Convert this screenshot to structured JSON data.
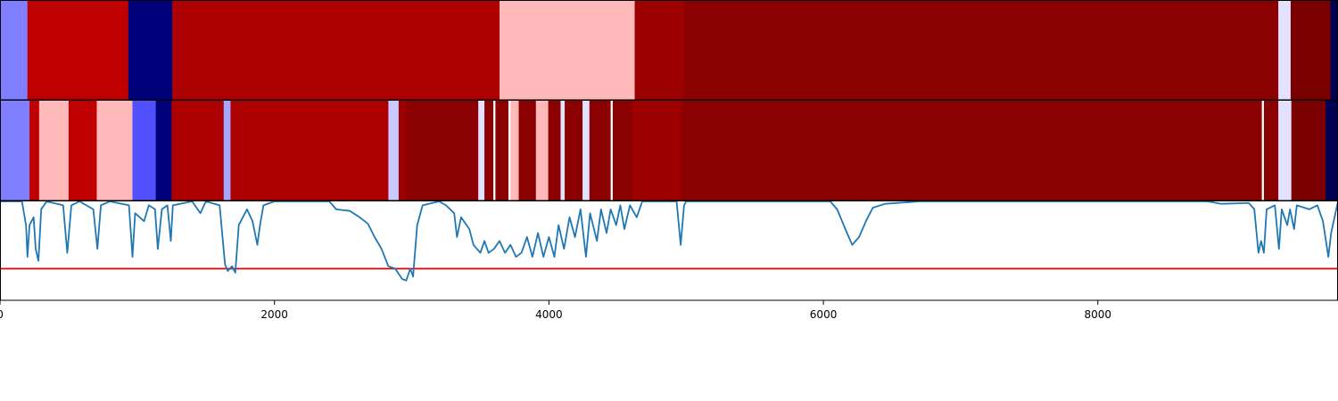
{
  "chart_data": {
    "type": "heatmap",
    "xlim": [
      0,
      9750
    ],
    "x_ticks": [
      "0",
      "2000",
      "4000",
      "6000",
      "8000"
    ],
    "x_tick_values": [
      0,
      2000,
      4000,
      6000,
      8000
    ],
    "colormap": "seismic",
    "rows": [
      {
        "name": "",
        "segments": [
          {
            "start": 0,
            "end": 200,
            "color": "#7f7fff"
          },
          {
            "start": 200,
            "end": 935,
            "color": "#c00000"
          },
          {
            "start": 935,
            "end": 1255,
            "color": "#00007a"
          },
          {
            "start": 1255,
            "end": 3640,
            "color": "#ad0000"
          },
          {
            "start": 3640,
            "end": 4625,
            "color": "#ffb9b9"
          },
          {
            "start": 4625,
            "end": 4985,
            "color": "#9c0000"
          },
          {
            "start": 4985,
            "end": 9315,
            "color": "#8b0000"
          },
          {
            "start": 9315,
            "end": 9405,
            "color": "#e2e2ff"
          },
          {
            "start": 9405,
            "end": 9695,
            "color": "#7a0000"
          },
          {
            "start": 9695,
            "end": 9750,
            "color": "#000055"
          }
        ]
      },
      {
        "name": "",
        "segments": [
          {
            "start": 0,
            "end": 215,
            "color": "#7f7fff"
          },
          {
            "start": 215,
            "end": 285,
            "color": "#c00000"
          },
          {
            "start": 285,
            "end": 500,
            "color": "#ffb9b9"
          },
          {
            "start": 500,
            "end": 705,
            "color": "#c00000"
          },
          {
            "start": 705,
            "end": 965,
            "color": "#ffb9b9"
          },
          {
            "start": 965,
            "end": 1135,
            "color": "#5050ff"
          },
          {
            "start": 1135,
            "end": 1250,
            "color": "#00007a"
          },
          {
            "start": 1250,
            "end": 1630,
            "color": "#ad0000"
          },
          {
            "start": 1630,
            "end": 1680,
            "color": "#a5a5ff"
          },
          {
            "start": 1680,
            "end": 2830,
            "color": "#ad0000"
          },
          {
            "start": 2830,
            "end": 2905,
            "color": "#c9c9ff"
          },
          {
            "start": 2905,
            "end": 2960,
            "color": "#9c0000"
          },
          {
            "start": 2960,
            "end": 3485,
            "color": "#8b0000"
          },
          {
            "start": 3485,
            "end": 3530,
            "color": "#e2e2ff"
          },
          {
            "start": 3530,
            "end": 3595,
            "color": "#8b0000"
          },
          {
            "start": 3595,
            "end": 3610,
            "color": "#ffffff"
          },
          {
            "start": 3610,
            "end": 3705,
            "color": "#8b0000"
          },
          {
            "start": 3705,
            "end": 3720,
            "color": "#ffffff"
          },
          {
            "start": 3720,
            "end": 3780,
            "color": "#ffb9b9"
          },
          {
            "start": 3780,
            "end": 3790,
            "color": "#8b0000"
          },
          {
            "start": 3790,
            "end": 3905,
            "color": "#8b0000"
          },
          {
            "start": 3905,
            "end": 3995,
            "color": "#ffb9b9"
          },
          {
            "start": 3995,
            "end": 4085,
            "color": "#8b0000"
          },
          {
            "start": 4085,
            "end": 4115,
            "color": "#e2e2ff"
          },
          {
            "start": 4115,
            "end": 4245,
            "color": "#8b0000"
          },
          {
            "start": 4245,
            "end": 4295,
            "color": "#e2e2ff"
          },
          {
            "start": 4295,
            "end": 4450,
            "color": "#8b0000"
          },
          {
            "start": 4450,
            "end": 4465,
            "color": "#ffffff"
          },
          {
            "start": 4465,
            "end": 4605,
            "color": "#8b0000"
          },
          {
            "start": 4605,
            "end": 4965,
            "color": "#9c0000"
          },
          {
            "start": 4965,
            "end": 9195,
            "color": "#8b0000"
          },
          {
            "start": 9195,
            "end": 9210,
            "color": "#ffffff"
          },
          {
            "start": 9210,
            "end": 9315,
            "color": "#8b0000"
          },
          {
            "start": 9315,
            "end": 9410,
            "color": "#e2e2ff"
          },
          {
            "start": 9410,
            "end": 9660,
            "color": "#7a0000"
          },
          {
            "start": 9660,
            "end": 9750,
            "color": "#000055"
          }
        ]
      }
    ],
    "line": {
      "color": "#1f77b4",
      "ylim": [
        -1.25,
        0
      ],
      "threshold": -0.85,
      "threshold_color": "#e00000",
      "points": [
        [
          0,
          0
        ],
        [
          160,
          0
        ],
        [
          190,
          -0.3
        ],
        [
          200,
          -0.7
        ],
        [
          215,
          -0.3
        ],
        [
          245,
          -0.2
        ],
        [
          260,
          -0.6
        ],
        [
          280,
          -0.75
        ],
        [
          300,
          -0.1
        ],
        [
          340,
          0
        ],
        [
          460,
          -0.05
        ],
        [
          490,
          -0.65
        ],
        [
          520,
          -0.05
        ],
        [
          580,
          0
        ],
        [
          680,
          -0.1
        ],
        [
          710,
          -0.6
        ],
        [
          735,
          -0.05
        ],
        [
          800,
          0
        ],
        [
          940,
          -0.05
        ],
        [
          965,
          -0.7
        ],
        [
          985,
          -0.15
        ],
        [
          1050,
          -0.25
        ],
        [
          1085,
          -0.05
        ],
        [
          1130,
          -0.1
        ],
        [
          1150,
          -0.6
        ],
        [
          1180,
          -0.1
        ],
        [
          1220,
          -0.05
        ],
        [
          1245,
          -0.5
        ],
        [
          1260,
          -0.05
        ],
        [
          1400,
          0
        ],
        [
          1460,
          -0.15
        ],
        [
          1500,
          0
        ],
        [
          1600,
          -0.05
        ],
        [
          1640,
          -0.8
        ],
        [
          1660,
          -0.88
        ],
        [
          1690,
          -0.82
        ],
        [
          1715,
          -0.9
        ],
        [
          1740,
          -0.3
        ],
        [
          1800,
          -0.1
        ],
        [
          1840,
          -0.25
        ],
        [
          1875,
          -0.55
        ],
        [
          1895,
          -0.3
        ],
        [
          1920,
          -0.05
        ],
        [
          2000,
          0
        ],
        [
          2400,
          0
        ],
        [
          2450,
          -0.1
        ],
        [
          2550,
          -0.12
        ],
        [
          2620,
          -0.2
        ],
        [
          2680,
          -0.28
        ],
        [
          2730,
          -0.45
        ],
        [
          2780,
          -0.6
        ],
        [
          2830,
          -0.82
        ],
        [
          2880,
          -0.85
        ],
        [
          2930,
          -0.98
        ],
        [
          2960,
          -1.0
        ],
        [
          2990,
          -0.85
        ],
        [
          3010,
          -0.95
        ],
        [
          3040,
          -0.3
        ],
        [
          3080,
          -0.05
        ],
        [
          3200,
          0
        ],
        [
          3250,
          -0.05
        ],
        [
          3310,
          -0.15
        ],
        [
          3330,
          -0.45
        ],
        [
          3360,
          -0.2
        ],
        [
          3420,
          -0.35
        ],
        [
          3450,
          -0.55
        ],
        [
          3500,
          -0.65
        ],
        [
          3530,
          -0.5
        ],
        [
          3560,
          -0.65
        ],
        [
          3600,
          -0.6
        ],
        [
          3640,
          -0.5
        ],
        [
          3680,
          -0.65
        ],
        [
          3720,
          -0.55
        ],
        [
          3760,
          -0.7
        ],
        [
          3800,
          -0.65
        ],
        [
          3840,
          -0.45
        ],
        [
          3880,
          -0.7
        ],
        [
          3920,
          -0.4
        ],
        [
          3960,
          -0.7
        ],
        [
          4000,
          -0.45
        ],
        [
          4040,
          -0.7
        ],
        [
          4070,
          -0.3
        ],
        [
          4110,
          -0.6
        ],
        [
          4150,
          -0.2
        ],
        [
          4190,
          -0.45
        ],
        [
          4230,
          -0.1
        ],
        [
          4270,
          -0.7
        ],
        [
          4300,
          -0.15
        ],
        [
          4350,
          -0.5
        ],
        [
          4380,
          -0.1
        ],
        [
          4420,
          -0.4
        ],
        [
          4450,
          -0.1
        ],
        [
          4490,
          -0.3
        ],
        [
          4520,
          -0.05
        ],
        [
          4550,
          -0.35
        ],
        [
          4590,
          -0.05
        ],
        [
          4640,
          -0.2
        ],
        [
          4680,
          0
        ],
        [
          4930,
          0
        ],
        [
          4960,
          -0.55
        ],
        [
          4985,
          -0.05
        ],
        [
          5000,
          0
        ],
        [
          6050,
          0
        ],
        [
          6100,
          -0.1
        ],
        [
          6160,
          -0.35
        ],
        [
          6210,
          -0.55
        ],
        [
          6260,
          -0.45
        ],
        [
          6310,
          -0.25
        ],
        [
          6360,
          -0.08
        ],
        [
          6450,
          -0.03
        ],
        [
          6700,
          0
        ],
        [
          8800,
          0
        ],
        [
          8900,
          -0.03
        ],
        [
          9100,
          -0.02
        ],
        [
          9140,
          -0.1
        ],
        [
          9170,
          -0.65
        ],
        [
          9190,
          -0.5
        ],
        [
          9210,
          -0.65
        ],
        [
          9230,
          -0.1
        ],
        [
          9290,
          -0.05
        ],
        [
          9320,
          -0.6
        ],
        [
          9340,
          -0.1
        ],
        [
          9380,
          -0.3
        ],
        [
          9400,
          -0.1
        ],
        [
          9430,
          -0.35
        ],
        [
          9450,
          -0.05
        ],
        [
          9540,
          -0.1
        ],
        [
          9600,
          -0.05
        ],
        [
          9640,
          -0.25
        ],
        [
          9680,
          -0.7
        ],
        [
          9700,
          -0.4
        ],
        [
          9750,
          0
        ]
      ]
    }
  }
}
